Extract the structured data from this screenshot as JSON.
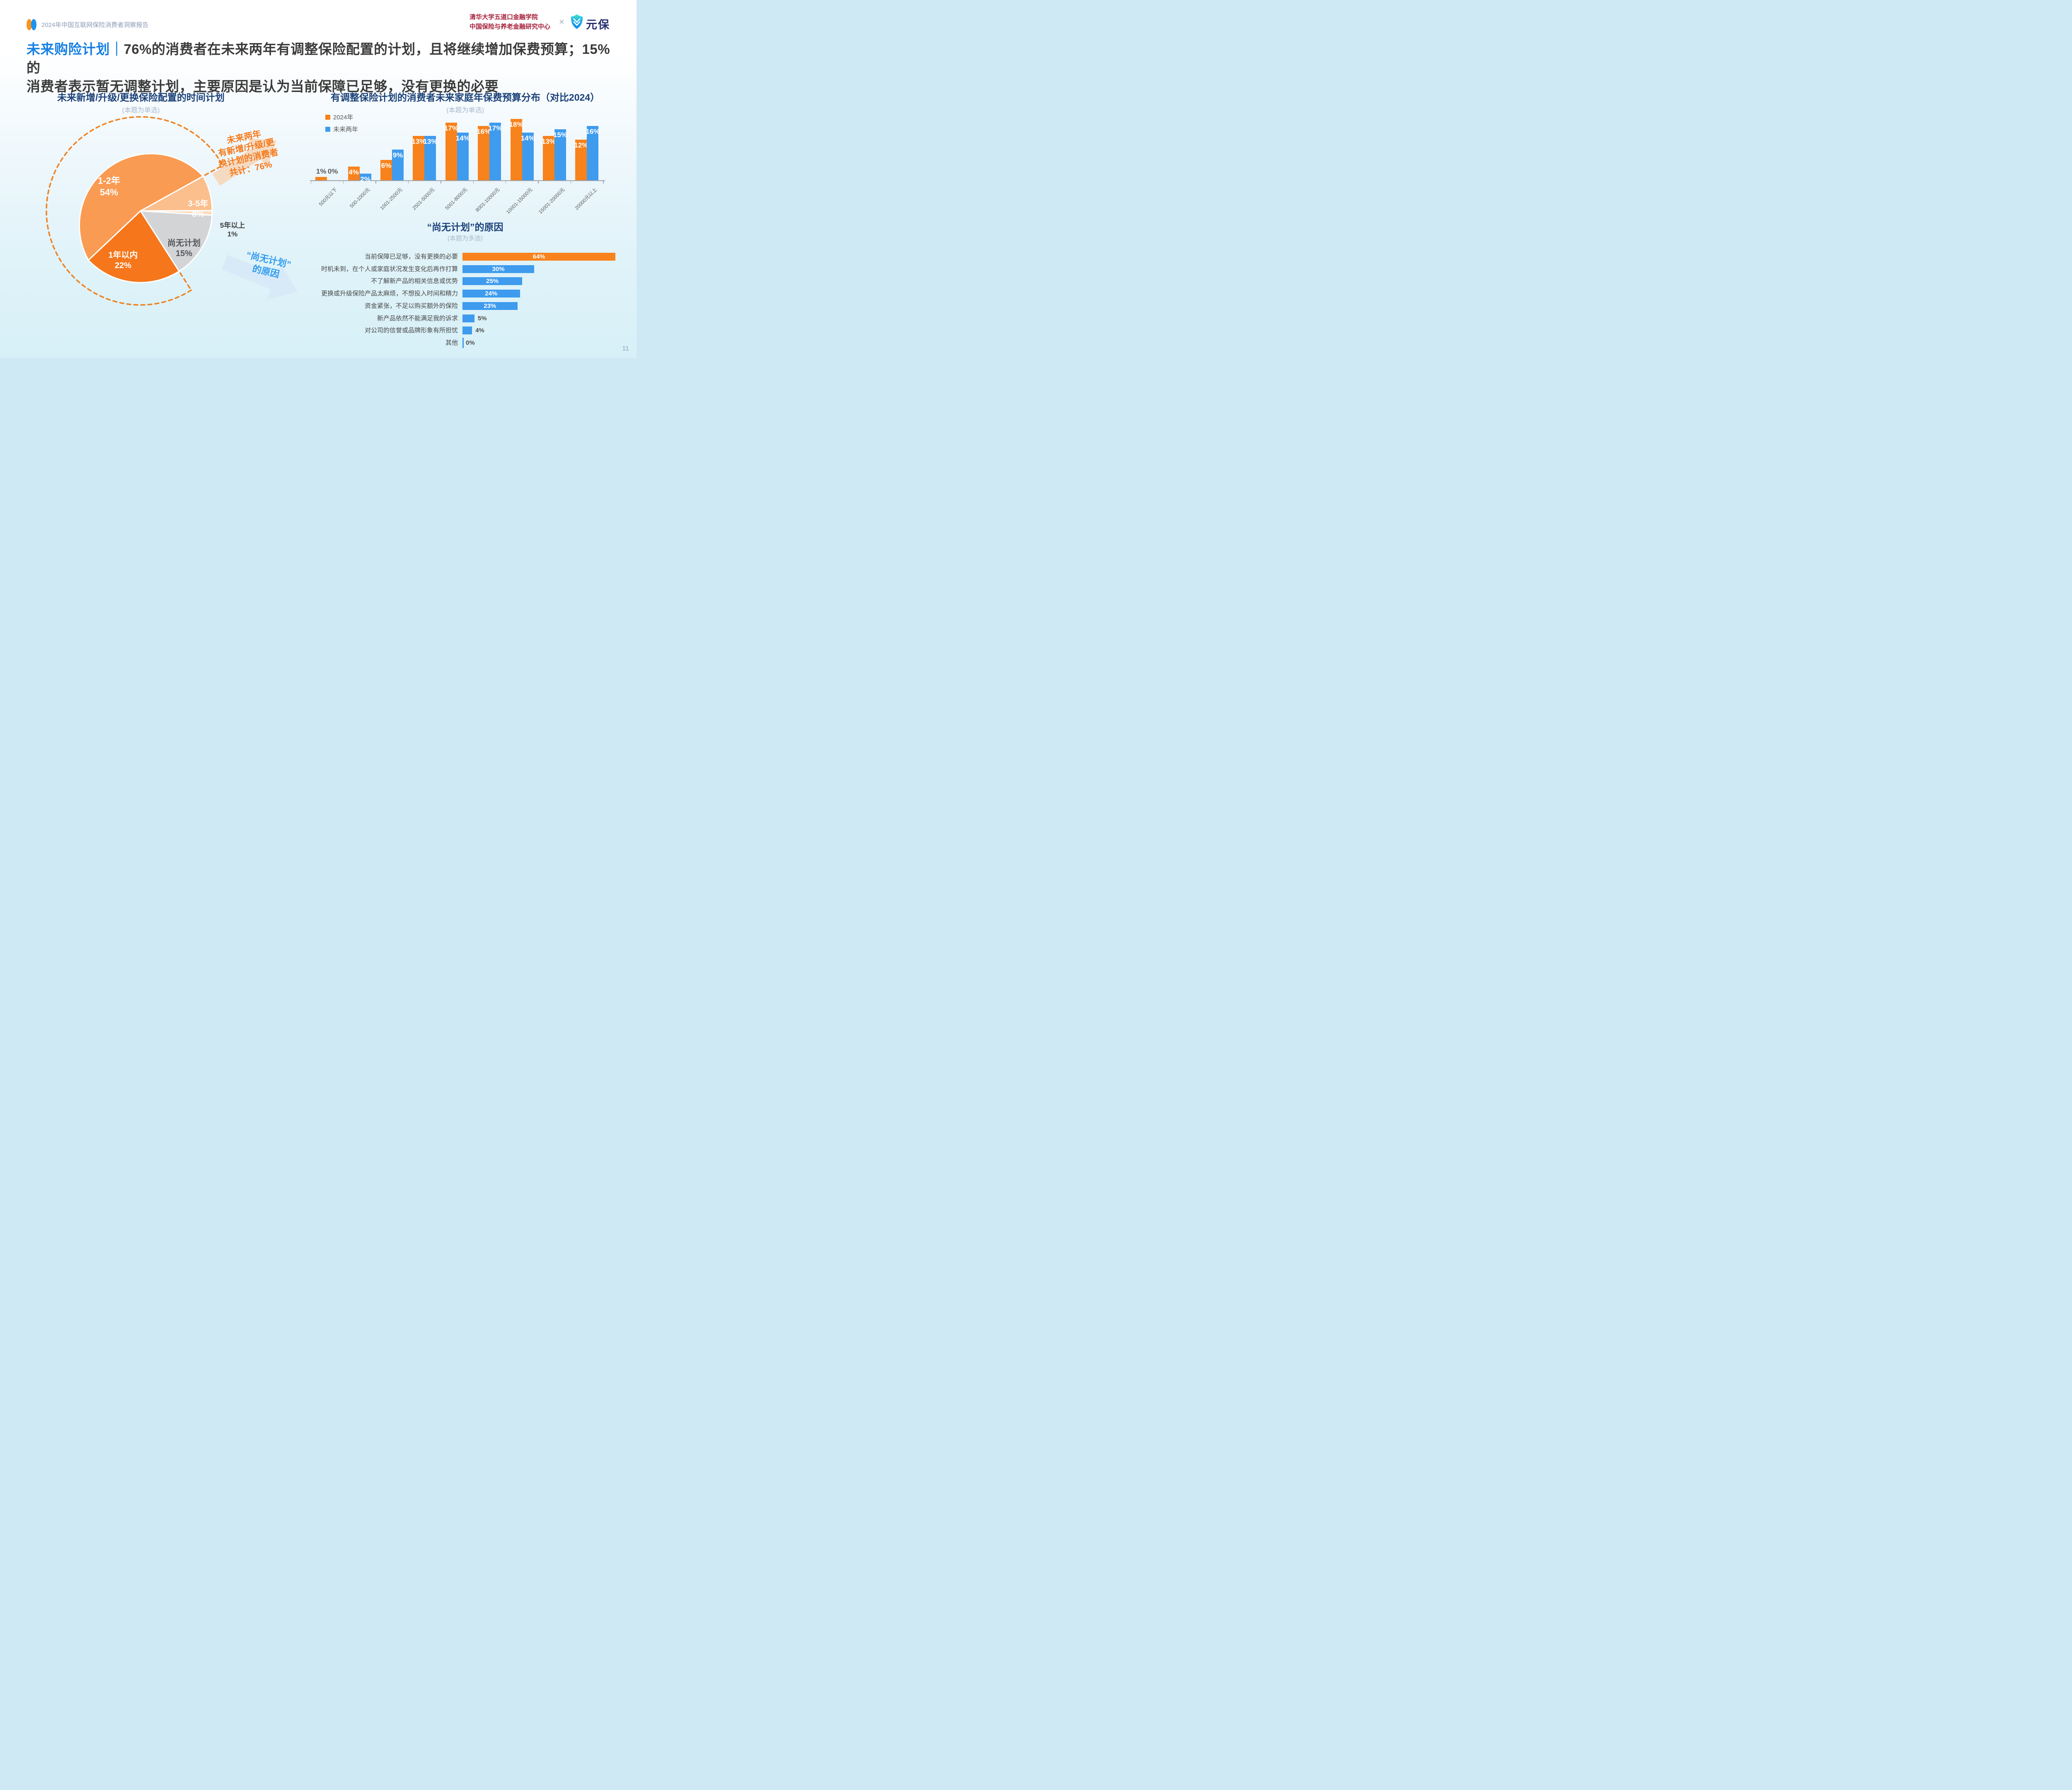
{
  "header": {
    "report_title": "2024年中国互联网保险消费者洞察报告",
    "institution_line1": "清华大学五道口金融学院",
    "institution_line2": "中国保险与养老金融研究中心",
    "connector": "×",
    "logo_text": "元保"
  },
  "title": {
    "highlight": "未来购险计划",
    "separator": "｜",
    "line1": "76%的消费者在未来两年有调整保险配置的计划，且将继续增加保费预算；15%的",
    "line2": "消费者表示暂无调整计划，主要原因是认为当前保障已足够，没有更换的必要"
  },
  "colors": {
    "orange": "#F8821C",
    "blue": "#3E9BEE",
    "navy": "#1A4078",
    "title_blue": "#157FE3",
    "red": "#A5203A",
    "dash": "#EF8220",
    "axis": "#9FA4AA",
    "arrow_orange_fill": "#F8CFAC",
    "arrow_blue_fill": "#D7E9F8",
    "annotation_orange": "#F5791A",
    "annotation_blue": "#2F9BF0",
    "header_gray": "#8C9CB5",
    "logo_navy": "#272F6D",
    "page_num_gray": "#93A5BC"
  },
  "chart_data": [
    {
      "type": "pie",
      "title": "未来新增/升级/更换保险配置的时间计划",
      "subtitle": "(本题为单选)",
      "slices": [
        {
          "label": "1-2年",
          "value": 54,
          "color": "#F99B52",
          "label_color": "#FFFFFF"
        },
        {
          "label": "3-5年",
          "value": 8,
          "color": "#FBBE8D",
          "label_color": "#FFFFFF"
        },
        {
          "label": "5年以上",
          "value": 1,
          "color": "#FCDCBF",
          "label_color": "#3F3F3F"
        },
        {
          "label": "尚无计划",
          "value": 15,
          "color": "#D3D4D6",
          "label_color": "#54565A"
        },
        {
          "label": "1年以内",
          "value": 22,
          "color": "#F5761B",
          "label_color": "#FFFFFF"
        }
      ],
      "annotation_total": {
        "lines": [
          "未来两年",
          "有新增/升级/更",
          "换计划的消费者",
          "共计：76%"
        ]
      },
      "annotation_reason": {
        "lines": [
          "“尚无计划”",
          "的原因"
        ]
      }
    },
    {
      "type": "bar",
      "title": "有调整保险计划的消费者未来家庭年保费预算分布（对比2024）",
      "subtitle": "(本题为单选)",
      "unit": "%",
      "ylim": [
        0,
        20
      ],
      "legend_position": "top-left",
      "categories": [
        "500元以下",
        "500-1000元",
        "1001-2500元",
        "2501-5000元",
        "5001-8000元",
        "8001-10000元",
        "10001-15000元",
        "15001-20000元",
        "20000元以上"
      ],
      "series": [
        {
          "name": "2024年",
          "color": "#F8821C",
          "values": [
            1,
            4,
            6,
            13,
            17,
            16,
            18,
            13,
            12
          ]
        },
        {
          "name": "未来两年",
          "color": "#3E9BEE",
          "values": [
            0,
            2,
            9,
            13,
            14,
            17,
            14,
            15,
            16
          ]
        }
      ]
    },
    {
      "type": "bar",
      "orientation": "horizontal",
      "title": "“尚无计划”的原因",
      "subtitle": "(本题为多选)",
      "unit": "%",
      "categories": [
        "当前保障已足够，没有更换的必要",
        "时机未到，在个人或家庭状况发生变化后再作打算",
        "不了解新产品的相关信息或优势",
        "更换或升级保险产品太麻烦，不想投入时间和精力",
        "资金紧张，不足以购买额外的保险",
        "新产品依然不能满足我的诉求",
        "对公司的信誉或品牌形象有所担忧",
        "其他"
      ],
      "values": [
        64,
        30,
        25,
        24,
        23,
        5,
        4,
        0
      ],
      "bar_colors": [
        "#F8821C",
        "#3E9BEE",
        "#3E9BEE",
        "#3E9BEE",
        "#3E9BEE",
        "#3E9BEE",
        "#3E9BEE",
        "#3E9BEE"
      ]
    }
  ],
  "page_number": "11"
}
